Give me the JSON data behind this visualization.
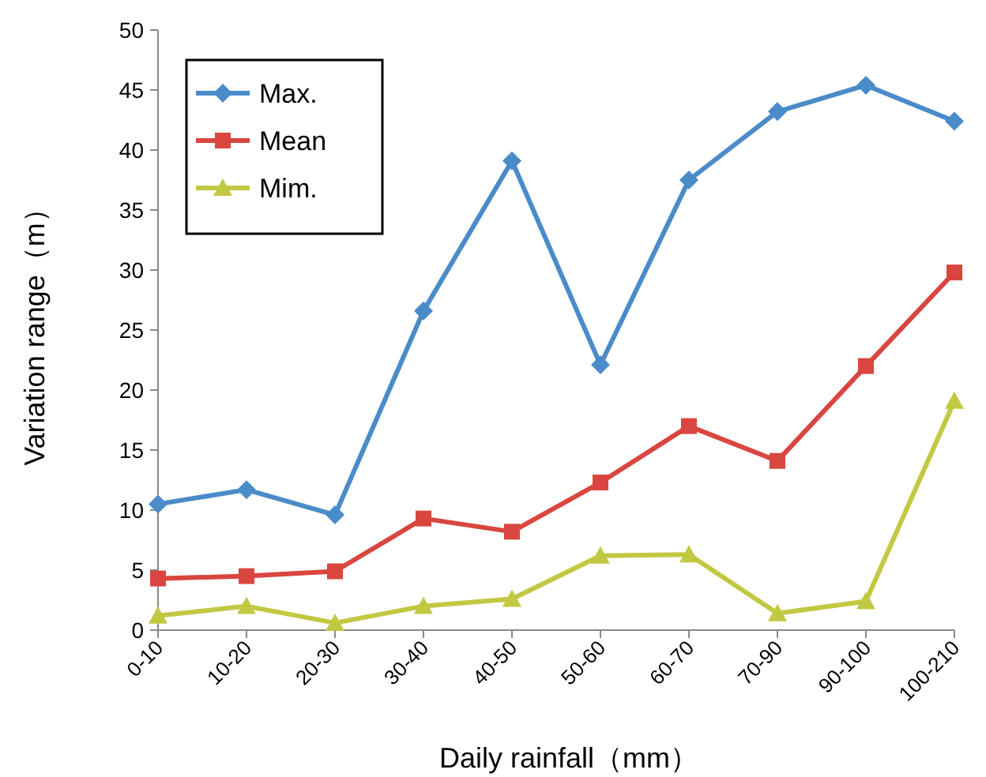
{
  "chart_data": {
    "type": "line",
    "xlabel": "Daily rainfall（mm）",
    "ylabel": "Variation range（m）",
    "categories": [
      "0-10",
      "10-20",
      "20-30",
      "30-40",
      "40-50",
      "50-60",
      "60-70",
      "70-90",
      "90-100",
      "100-210"
    ],
    "series": [
      {
        "name": "Max.",
        "color": "#4a8bc9",
        "marker": "diamond",
        "values": [
          10.5,
          11.7,
          9.6,
          26.6,
          39.1,
          22.1,
          37.5,
          43.2,
          45.4,
          42.4
        ]
      },
      {
        "name": "Mean",
        "color": "#d9463f",
        "marker": "square",
        "values": [
          4.3,
          4.5,
          4.9,
          9.3,
          8.2,
          12.3,
          17.0,
          14.1,
          22.0,
          29.8
        ]
      },
      {
        "name": "Mim.",
        "color": "#c3c843",
        "marker": "triangle",
        "values": [
          1.2,
          2.0,
          0.6,
          2.0,
          2.6,
          6.2,
          6.3,
          1.4,
          2.4,
          19.1
        ]
      }
    ],
    "ylim": [
      0,
      50
    ],
    "yticks": [
      0,
      5,
      10,
      15,
      20,
      25,
      30,
      35,
      40,
      45,
      50
    ],
    "grid": false,
    "legend": "top left",
    "line_style": "solid"
  }
}
